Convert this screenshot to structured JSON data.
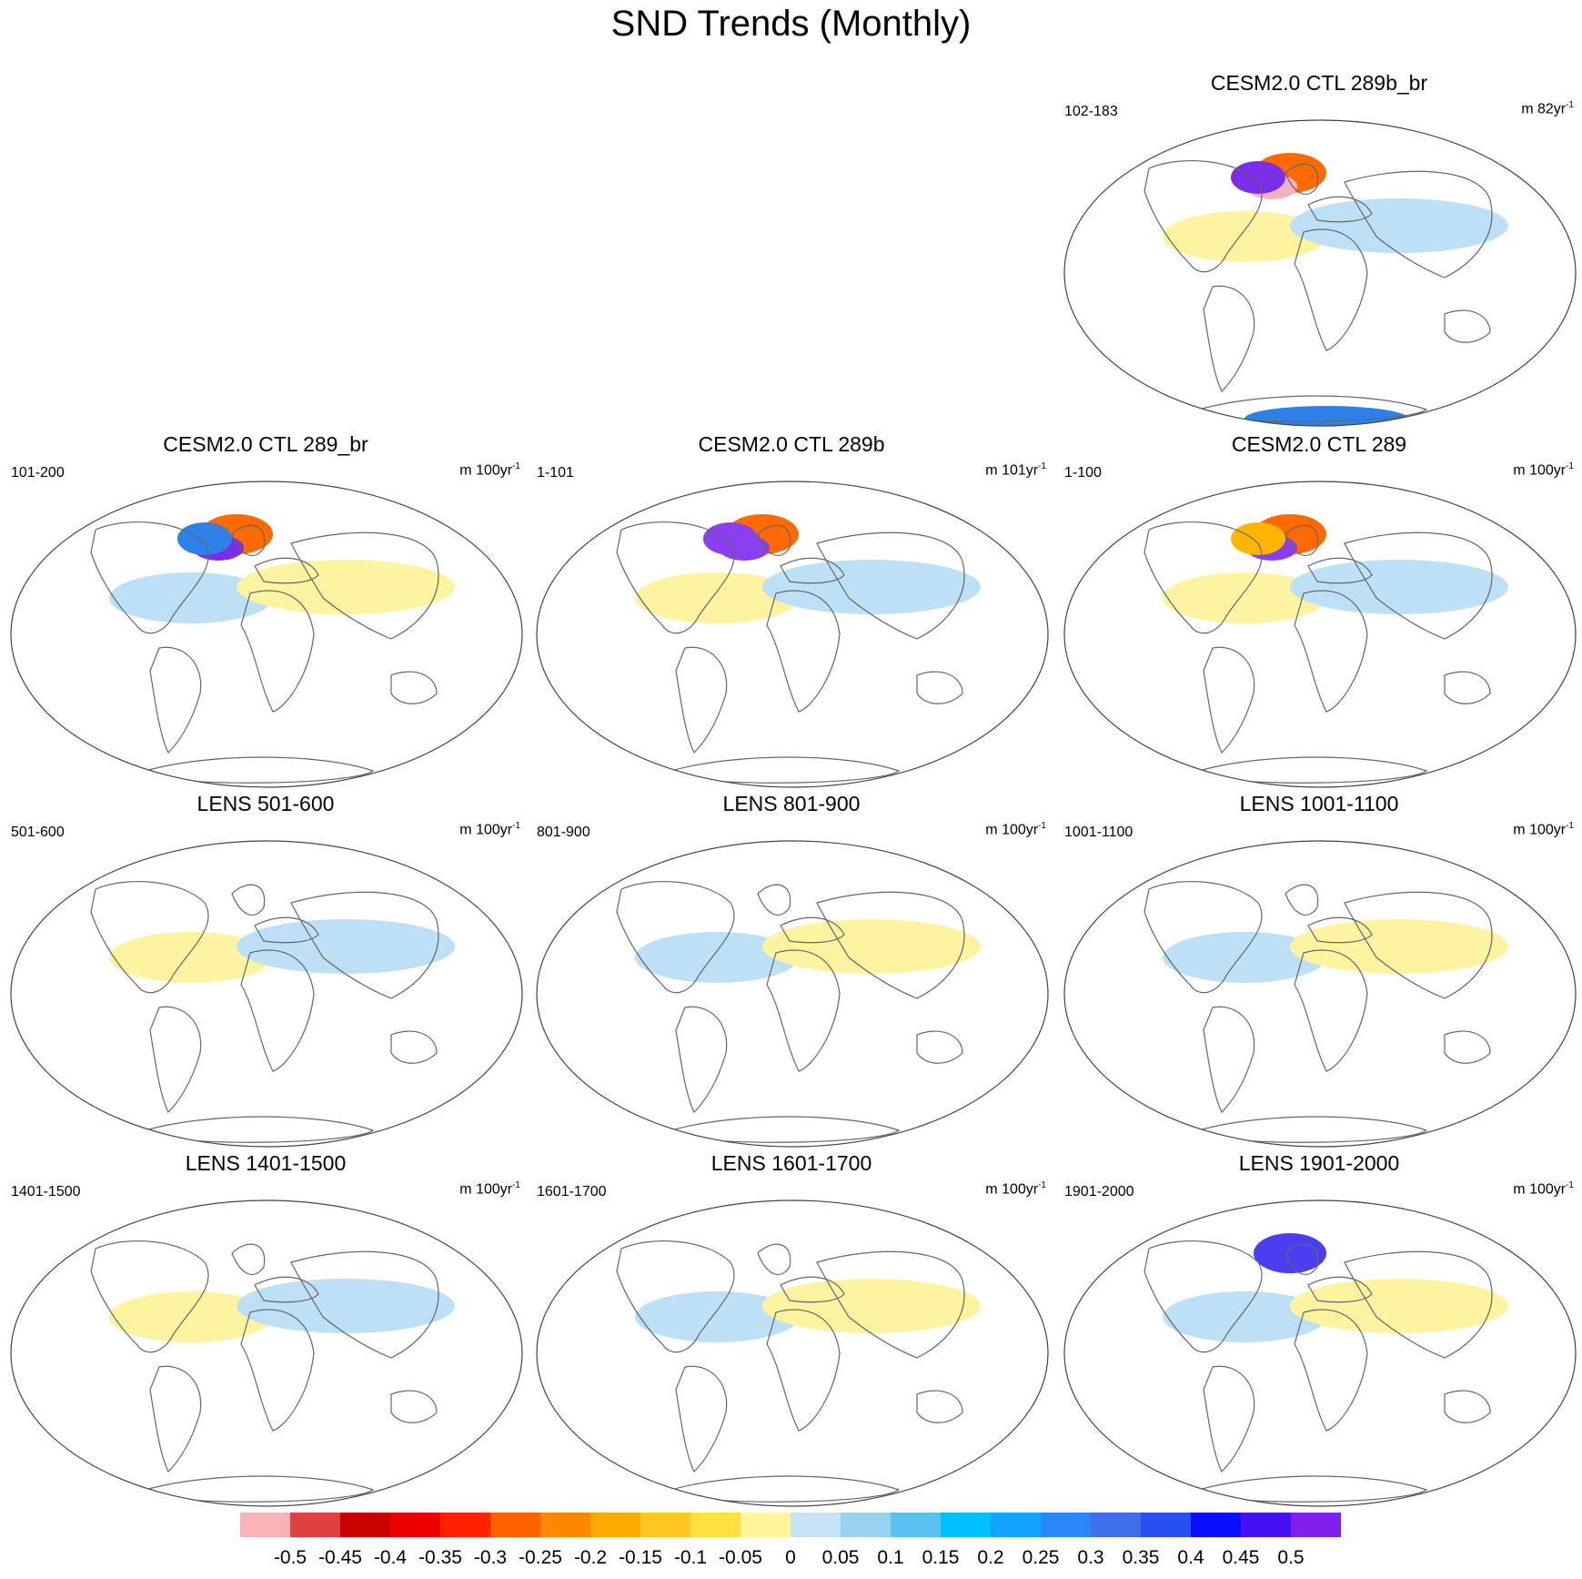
{
  "title": "SND Trends (Monthly)",
  "panels": [
    {
      "id": "p1",
      "title": "CESM2.0 CTL 289b_br",
      "range": "102-183",
      "unit_prefix": "m 82yr",
      "unit_exp": "-1",
      "patches": [
        {
          "color": "#fdf3a0"
        },
        {
          "color": "#bde0f6"
        },
        {
          "color": "#ff6a00"
        },
        {
          "color": "#f0b1c0"
        },
        {
          "color": "#7a2ee8"
        },
        {
          "color": "#2e7fe8"
        }
      ]
    },
    {
      "id": "p2",
      "title": "CESM2.0 CTL 289_br",
      "range": "101-200",
      "unit_prefix": "m 100yr",
      "unit_exp": "-1",
      "patches": [
        {
          "color": "#bde0f6"
        },
        {
          "color": "#fdf3a0"
        },
        {
          "color": "#ff6a00"
        },
        {
          "color": "#7a2ee8"
        },
        {
          "color": "#2e7fe8"
        }
      ]
    },
    {
      "id": "p3",
      "title": "CESM2.0 CTL 289b",
      "range": "1-101",
      "unit_prefix": "m 101yr",
      "unit_exp": "-1",
      "patches": [
        {
          "color": "#fdf3a0"
        },
        {
          "color": "#bde0f6"
        },
        {
          "color": "#ff6a00"
        },
        {
          "color": "#8a3ef0"
        },
        {
          "color": "#8a3ef0"
        }
      ]
    },
    {
      "id": "p4",
      "title": "CESM2.0 CTL 289",
      "range": "1-100",
      "unit_prefix": "m 100yr",
      "unit_exp": "-1",
      "patches": [
        {
          "color": "#fdf3a0"
        },
        {
          "color": "#bde0f6"
        },
        {
          "color": "#ff6a00"
        },
        {
          "color": "#8a3ef0"
        },
        {
          "color": "#ffb400"
        }
      ]
    },
    {
      "id": "p5",
      "title": "LENS 501-600",
      "range": "501-600",
      "unit_prefix": "m 100yr",
      "unit_exp": "-1",
      "patches": [
        {
          "color": "#fdf3a0"
        },
        {
          "color": "#bde0f6"
        }
      ]
    },
    {
      "id": "p6",
      "title": "LENS 801-900",
      "range": "801-900",
      "unit_prefix": "m 100yr",
      "unit_exp": "-1",
      "patches": [
        {
          "color": "#bde0f6"
        },
        {
          "color": "#fdf3a0"
        }
      ]
    },
    {
      "id": "p7",
      "title": "LENS 1001-1100",
      "range": "1001-1100",
      "unit_prefix": "m 100yr",
      "unit_exp": "-1",
      "patches": [
        {
          "color": "#bde0f6"
        },
        {
          "color": "#fdf3a0"
        }
      ]
    },
    {
      "id": "p8",
      "title": "LENS 1401-1500",
      "range": "1401-1500",
      "unit_prefix": "m 100yr",
      "unit_exp": "-1",
      "patches": [
        {
          "color": "#fdf3a0"
        },
        {
          "color": "#bde0f6"
        }
      ]
    },
    {
      "id": "p9",
      "title": "LENS 1601-1700",
      "range": "1601-1700",
      "unit_prefix": "m 100yr",
      "unit_exp": "-1",
      "patches": [
        {
          "color": "#bde0f6"
        },
        {
          "color": "#fdf3a0"
        }
      ]
    },
    {
      "id": "p10",
      "title": "LENS 1901-2000",
      "range": "1901-2000",
      "unit_prefix": "m 100yr",
      "unit_exp": "-1",
      "patches": [
        {
          "color": "#bde0f6"
        },
        {
          "color": "#fdf3a0"
        },
        {
          "color": "#4a3ef0"
        }
      ]
    }
  ],
  "colorbar": {
    "colors": [
      "#f9b2b6",
      "#e04040",
      "#c80000",
      "#ee0000",
      "#ff2000",
      "#ff6000",
      "#ff8800",
      "#ffaa00",
      "#ffc820",
      "#ffe040",
      "#fff59a",
      "#c4e4f6",
      "#98d0f0",
      "#5ec0f0",
      "#00c0ff",
      "#12a2ff",
      "#2a88f8",
      "#3c70e8",
      "#2850f0",
      "#0810ff",
      "#4412f0",
      "#8020ec"
    ],
    "labels": [
      "-0.5",
      "-0.45",
      "-0.4",
      "-0.35",
      "-0.3",
      "-0.25",
      "-0.2",
      "-0.15",
      "-0.1",
      "-0.05",
      "0",
      "0.05",
      "0.1",
      "0.15",
      "0.2",
      "0.25",
      "0.3",
      "0.35",
      "0.4",
      "0.45",
      "0.5"
    ]
  }
}
